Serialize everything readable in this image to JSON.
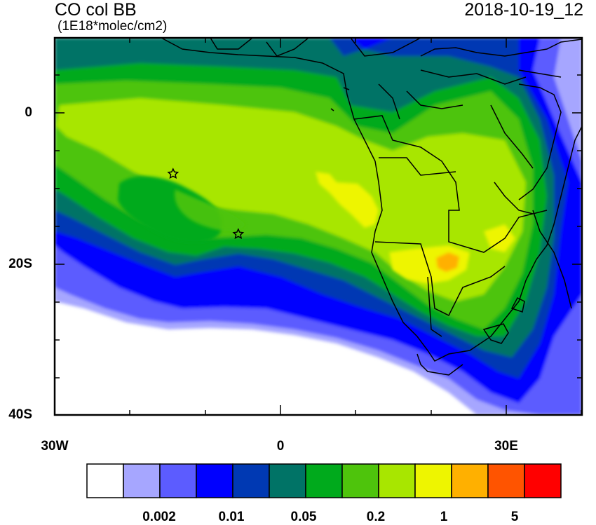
{
  "header": {
    "title": "CO col BB",
    "units": "(1E18*molec/cm2)",
    "datetime": "2018-10-19_12"
  },
  "map": {
    "lat_range": [
      -40,
      10
    ],
    "lon_range": [
      -30,
      40
    ],
    "lat_ticks": [
      {
        "lat": 0,
        "label": "0"
      },
      {
        "lat": -20,
        "label": "20S"
      },
      {
        "lat": -40,
        "label": "40S"
      }
    ],
    "lon_ticks": [
      {
        "lon": -30,
        "label": "30W"
      },
      {
        "lon": 0,
        "label": "0"
      },
      {
        "lon": 30,
        "label": "30E"
      }
    ],
    "markers": [
      {
        "lon": -14.4,
        "lat": -8.0,
        "symbol": "star"
      },
      {
        "lon": -5.7,
        "lat": -16.0,
        "symbol": "star"
      }
    ]
  },
  "colorbar": {
    "colors": [
      "#ffffff",
      "#a6a6ff",
      "#5c5cff",
      "#0000ff",
      "#0039b3",
      "#007366",
      "#00aa1c",
      "#4ec40c",
      "#a8e600",
      "#eef500",
      "#ffb000",
      "#ff5400",
      "#ff0000"
    ],
    "labels": [
      {
        "text": "0.002",
        "boundary": 2
      },
      {
        "text": "0.01",
        "boundary": 4
      },
      {
        "text": "0.05",
        "boundary": 6
      },
      {
        "text": "0.2",
        "boundary": 8
      },
      {
        "text": "1",
        "boundary": 10
      },
      {
        "text": "5",
        "boundary": 12
      }
    ]
  }
}
